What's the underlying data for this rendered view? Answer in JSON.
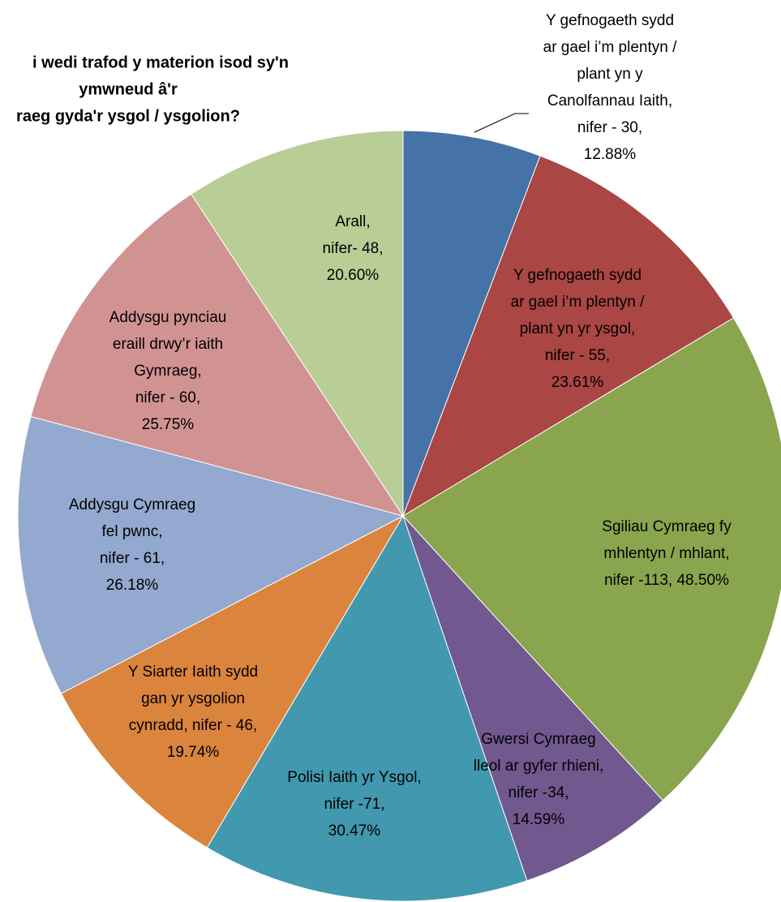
{
  "chart_data": {
    "type": "pie",
    "title_lines": [
      "i wedi trafod y materion isod sy'n",
      "ymwneud â'r",
      "raeg gyda'r ysgol / ysgolion?"
    ],
    "start_angle_deg": 0,
    "direction": "clockwise",
    "slices": [
      {
        "key": "canolfannau",
        "value": 30,
        "percent_label": "12.88%",
        "color": "#4572A7",
        "label_lines": [
          "Y gefnogaeth sydd",
          "ar gael i’m plentyn /",
          "plant yn y",
          "Canolfannau Iaith,",
          "nifer - 30,",
          "12.88%"
        ]
      },
      {
        "key": "ysgol-support",
        "value": 55,
        "percent_label": "23.61%",
        "color": "#AA4643",
        "label_lines": [
          "Y gefnogaeth sydd",
          "ar gael i’m plentyn /",
          "plant yn yr ysgol,",
          "nifer - 55,",
          "23.61%"
        ]
      },
      {
        "key": "sgiliau",
        "value": 113,
        "percent_label": "48.50%",
        "color": "#89A54E",
        "label_lines": [
          "Sgiliau Cymraeg fy",
          "mhlentyn / mhlant,",
          "nifer -113, 48.50%"
        ]
      },
      {
        "key": "gwersi",
        "value": 34,
        "percent_label": "14.59%",
        "color": "#71588F",
        "label_lines": [
          "Gwersi Cymraeg",
          "lleol ar gyfer rhieni,",
          "nifer -34,",
          "14.59%"
        ]
      },
      {
        "key": "polisi",
        "value": 71,
        "percent_label": "30.47%",
        "color": "#4198AF",
        "label_lines": [
          "Polisi Iaith yr Ysgol,",
          "nifer -71,",
          "30.47%"
        ]
      },
      {
        "key": "siarter",
        "value": 46,
        "percent_label": "19.74%",
        "color": "#DB843D",
        "label_lines": [
          "Y Siarter Iaith sydd",
          "gan yr ysgolion",
          "cynradd, nifer - 46,",
          "19.74%"
        ]
      },
      {
        "key": "addysgu-cymraeg",
        "value": 61,
        "percent_label": "26.18%",
        "color": "#93A9CF",
        "label_lines": [
          "Addysgu Cymraeg",
          "fel pwnc,",
          "nifer - 61,",
          "26.18%"
        ]
      },
      {
        "key": "addysgu-pynciau",
        "value": 60,
        "percent_label": "25.75%",
        "color": "#D19392",
        "label_lines": [
          "Addysgu pynciau",
          "eraill drwy’r iaith",
          "Gymraeg,",
          "nifer - 60,",
          "25.75%"
        ]
      },
      {
        "key": "arall",
        "value": 48,
        "percent_label": "20.60%",
        "color": "#B9CD96",
        "label_lines": [
          "Arall,",
          "nifer- 48,",
          "20.60%"
        ]
      }
    ]
  }
}
